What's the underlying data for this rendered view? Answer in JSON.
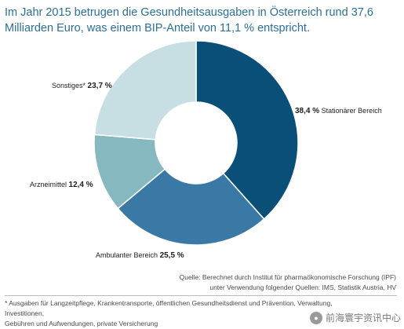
{
  "header": {
    "title": "Im Jahr 2015 betrugen die Gesundheitsausgaben in Österreich rund 37,6 Milliarden Euro, was einem BIP-Anteil von 11,1 % entspricht."
  },
  "chart_data": {
    "type": "pie",
    "donut": true,
    "title": "Im Jahr 2015 betrugen die Gesundheitsausgaben in Österreich rund 37,6 Milliarden Euro, was einem BIP-Anteil von 11,1 % entspricht.",
    "categories": [
      "Stationärer Bereich",
      "Ambulanter Bereich",
      "Arzneimittel",
      "Sonstiges*"
    ],
    "values": [
      38.4,
      25.5,
      12.4,
      23.7
    ],
    "value_labels": [
      "38,4 %",
      "25,5 %",
      "12,4 %",
      "23,7 %"
    ],
    "colors": [
      "#0a4f78",
      "#3a79a6",
      "#86b8c0",
      "#c7dfe3"
    ],
    "unit": "%"
  },
  "source": {
    "line1": "Quelle: Berechnet durch Institut für pharmaökonomische Forschung (IPF)",
    "line2": "unter Verwendung folgender Quellen: IMS, Statistik Austria, HV"
  },
  "footnote": {
    "line1": "* Ausgaben für Langzeitpflege, Krankentransporte, öffentlichen Gesundheitsdienst und Prävention, Verwaltung, Investitionen,",
    "line2": "Gebühren und Aufwendungen, private Versicherung"
  },
  "watermark": {
    "text": "前海寰宇资讯中心"
  }
}
